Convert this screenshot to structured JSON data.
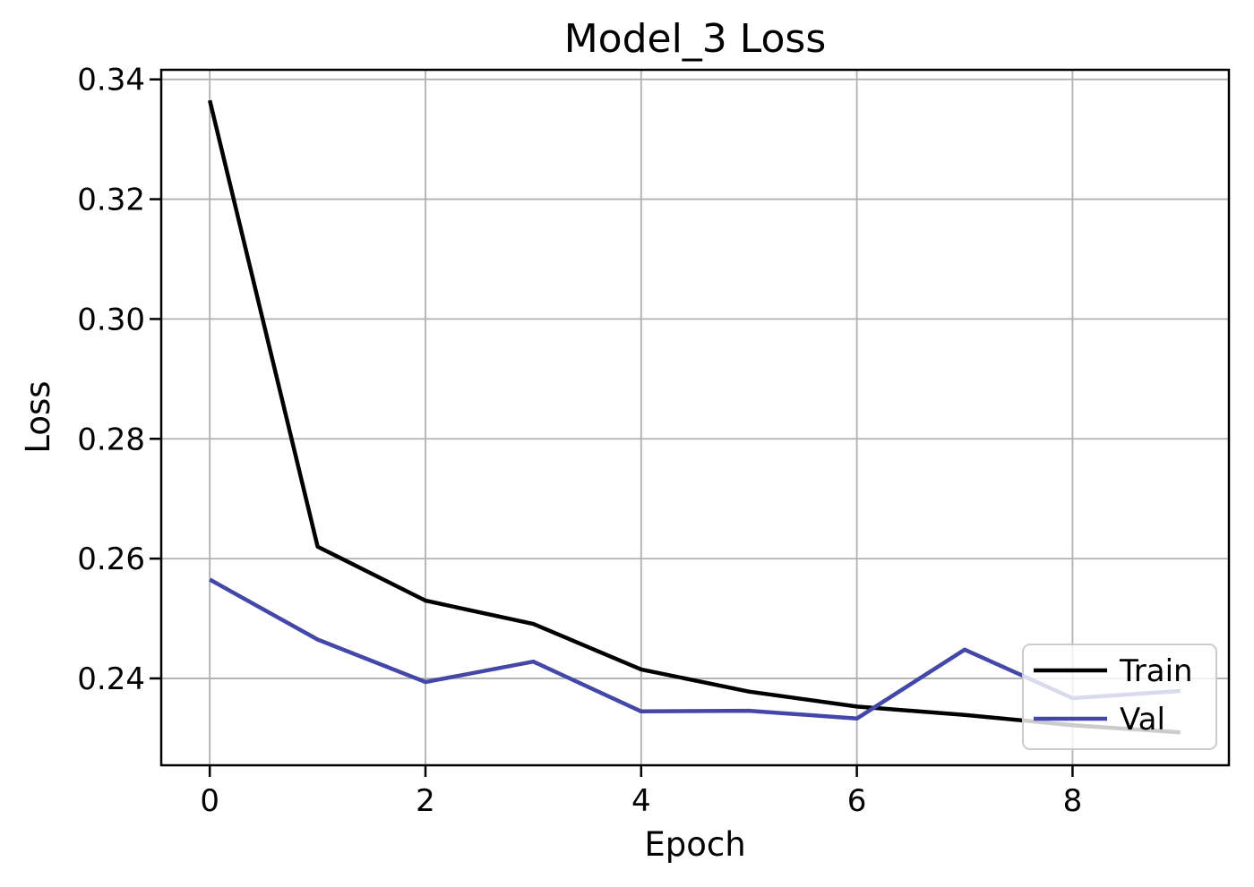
{
  "chart_data": {
    "type": "line",
    "title": "Model_3 Loss",
    "xlabel": "Epoch",
    "ylabel": "Loss",
    "x": [
      0,
      1,
      2,
      3,
      4,
      5,
      6,
      7,
      8,
      9
    ],
    "series": [
      {
        "name": "Train",
        "color": "#000000",
        "values": [
          0.3365,
          0.262,
          0.253,
          0.2491,
          0.2415,
          0.2378,
          0.2353,
          0.2339,
          0.2322,
          0.231
        ]
      },
      {
        "name": "Val",
        "color": "#4348a8",
        "values": [
          0.2565,
          0.2465,
          0.2394,
          0.2428,
          0.2345,
          0.2346,
          0.2333,
          0.2448,
          0.2367,
          0.2379
        ]
      }
    ],
    "xlim": [
      -0.45,
      9.45
    ],
    "ylim": [
      0.2255,
      0.3416
    ],
    "xticks": [
      0,
      2,
      4,
      6,
      8
    ],
    "xtick_labels": [
      "0",
      "2",
      "4",
      "6",
      "8"
    ],
    "yticks": [
      0.24,
      0.26,
      0.28,
      0.3,
      0.32,
      0.34
    ],
    "ytick_labels": [
      "0.24",
      "0.26",
      "0.28",
      "0.30",
      "0.32",
      "0.34"
    ],
    "grid": true,
    "legend": {
      "position": "lower right",
      "labels": [
        "Train",
        "Val"
      ]
    }
  },
  "colors": {
    "grid": "#b0b0b0",
    "axis": "#000000",
    "legend_border": "#cccccc",
    "background": "#ffffff"
  }
}
